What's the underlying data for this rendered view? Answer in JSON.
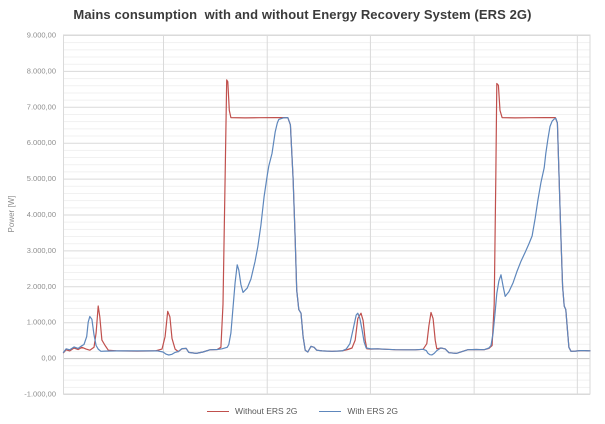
{
  "title": "Mains consumption  with and without Energy Recovery System (ERS 2G)",
  "y_axis": {
    "title": "Power [W]",
    "tick_labels": [
      "9.000,00",
      "8.000,00",
      "7.000,00",
      "6.000,00",
      "5.000,00",
      "4.000,00",
      "3.000,00",
      "2.000,00",
      "1.000,00",
      "0,00",
      "-1.000,00"
    ]
  },
  "legend": {
    "items": [
      {
        "label": "Without ERS 2G",
        "color": "#C0504D"
      },
      {
        "label": "With ERS 2G",
        "color": "#5E87BC"
      }
    ]
  },
  "chart_data": {
    "type": "line",
    "title": "Mains consumption  with and without Energy Recovery System (ERS 2G)",
    "xlabel": "",
    "ylabel": "Power [W]",
    "ylim": [
      -1000,
      9000
    ],
    "y_tick_step": 1000,
    "y_minor_step": 200,
    "y_tick_labels": [
      "9.000,00",
      "8.000,00",
      "7.000,00",
      "6.000,00",
      "5.000,00",
      "4.000,00",
      "3.000,00",
      "2.000,00",
      "1.000,00",
      "0,00",
      "-1.000,00"
    ],
    "x_axis_note": "no x tick labels shown; x expressed as percent of recorded window",
    "grid": {
      "h_major": true,
      "h_minor": true,
      "v_major": true
    },
    "x_gridlines_pct": [
      18.9,
      38.6,
      58.2,
      77.9,
      97.5
    ],
    "legend_position": "bottom",
    "series": [
      {
        "name": "Without ERS 2G",
        "color": "#C0504D",
        "points": [
          [
            0,
            150
          ],
          [
            0.5,
            230
          ],
          [
            1.2,
            200
          ],
          [
            2,
            280
          ],
          [
            2.8,
            240
          ],
          [
            3.5,
            300
          ],
          [
            4.3,
            250
          ],
          [
            5,
            220
          ],
          [
            5.8,
            300
          ],
          [
            6.2,
            700
          ],
          [
            6.6,
            1450
          ],
          [
            6.9,
            1150
          ],
          [
            7.3,
            500
          ],
          [
            7.9,
            350
          ],
          [
            8.5,
            220
          ],
          [
            10,
            200
          ],
          [
            14,
            195
          ],
          [
            17.4,
            200
          ],
          [
            18.7,
            250
          ],
          [
            19.3,
            600
          ],
          [
            19.8,
            1300
          ],
          [
            20.2,
            1150
          ],
          [
            20.6,
            550
          ],
          [
            21.2,
            250
          ],
          [
            21.8,
            180
          ],
          [
            22.5,
            260
          ],
          [
            23.3,
            270
          ],
          [
            23.8,
            160
          ],
          [
            25.2,
            130
          ],
          [
            26.5,
            170
          ],
          [
            27.8,
            230
          ],
          [
            29.2,
            240
          ],
          [
            29.9,
            300
          ],
          [
            30.3,
            1500
          ],
          [
            30.7,
            5000
          ],
          [
            31,
            7750
          ],
          [
            31.2,
            7700
          ],
          [
            31.5,
            6900
          ],
          [
            31.8,
            6700
          ],
          [
            34.5,
            6690
          ],
          [
            37.3,
            6695
          ],
          [
            40.2,
            6700
          ],
          [
            42.6,
            6700
          ],
          [
            43.1,
            6500
          ],
          [
            43.6,
            5000
          ],
          [
            44,
            3300
          ],
          [
            44.3,
            1900
          ],
          [
            44.7,
            1350
          ],
          [
            45.1,
            1250
          ],
          [
            45.5,
            600
          ],
          [
            45.9,
            220
          ],
          [
            46.4,
            170
          ],
          [
            47,
            330
          ],
          [
            47.6,
            300
          ],
          [
            48.1,
            220
          ],
          [
            49.1,
            200
          ],
          [
            51,
            190
          ],
          [
            52.9,
            200
          ],
          [
            54,
            240
          ],
          [
            54.8,
            280
          ],
          [
            55.4,
            500
          ],
          [
            55.9,
            1100
          ],
          [
            56.5,
            1250
          ],
          [
            56.9,
            1050
          ],
          [
            57.3,
            500
          ],
          [
            57.6,
            260
          ],
          [
            58.4,
            250
          ],
          [
            59.7,
            255
          ],
          [
            61.3,
            245
          ],
          [
            63,
            235
          ],
          [
            64.9,
            230
          ],
          [
            66.8,
            230
          ],
          [
            68.3,
            245
          ],
          [
            69,
            400
          ],
          [
            69.4,
            900
          ],
          [
            69.8,
            1270
          ],
          [
            70.2,
            1100
          ],
          [
            70.6,
            500
          ],
          [
            70.9,
            260
          ],
          [
            71.7,
            280
          ],
          [
            72.5,
            255
          ],
          [
            73.2,
            150
          ],
          [
            74.6,
            130
          ],
          [
            75.7,
            180
          ],
          [
            76.8,
            235
          ],
          [
            78.4,
            240
          ],
          [
            79.9,
            235
          ],
          [
            80.8,
            270
          ],
          [
            81.4,
            350
          ],
          [
            81.8,
            1500
          ],
          [
            82.1,
            5000
          ],
          [
            82.3,
            7650
          ],
          [
            82.6,
            7600
          ],
          [
            82.9,
            6900
          ],
          [
            83.3,
            6700
          ],
          [
            85.8,
            6690
          ],
          [
            88.6,
            6695
          ],
          [
            91.5,
            6700
          ],
          [
            93.4,
            6700
          ],
          [
            93.8,
            6550
          ],
          [
            94.1,
            5200
          ],
          [
            94.5,
            3300
          ],
          [
            94.8,
            2000
          ],
          [
            95.1,
            1450
          ],
          [
            95.4,
            1350
          ],
          [
            95.7,
            800
          ],
          [
            96,
            300
          ],
          [
            96.4,
            190
          ],
          [
            97.2,
            195
          ],
          [
            98.1,
            210
          ],
          [
            99,
            210
          ],
          [
            100,
            200
          ]
        ]
      },
      {
        "name": "With ERS 2G",
        "color": "#5E87BC",
        "points": [
          [
            0,
            160
          ],
          [
            0.5,
            260
          ],
          [
            1.2,
            230
          ],
          [
            2,
            310
          ],
          [
            2.8,
            270
          ],
          [
            3.3,
            330
          ],
          [
            3.9,
            380
          ],
          [
            4.4,
            600
          ],
          [
            4.7,
            1000
          ],
          [
            5,
            1160
          ],
          [
            5.4,
            1080
          ],
          [
            5.8,
            650
          ],
          [
            6.2,
            350
          ],
          [
            6.6,
            250
          ],
          [
            7.1,
            190
          ],
          [
            7.9,
            195
          ],
          [
            10,
            200
          ],
          [
            14,
            200
          ],
          [
            17.9,
            200
          ],
          [
            18.9,
            170
          ],
          [
            19.5,
            110
          ],
          [
            20,
            85
          ],
          [
            20.6,
            105
          ],
          [
            21.2,
            160
          ],
          [
            21.8,
            185
          ],
          [
            22.5,
            265
          ],
          [
            23.3,
            270
          ],
          [
            23.8,
            160
          ],
          [
            25.2,
            130
          ],
          [
            26.5,
            170
          ],
          [
            27.8,
            230
          ],
          [
            29.2,
            240
          ],
          [
            30.1,
            260
          ],
          [
            31.1,
            300
          ],
          [
            31.4,
            380
          ],
          [
            31.8,
            700
          ],
          [
            32.2,
            1400
          ],
          [
            32.6,
            2100
          ],
          [
            33,
            2600
          ],
          [
            33.3,
            2450
          ],
          [
            33.7,
            2050
          ],
          [
            34.1,
            1830
          ],
          [
            34.9,
            1950
          ],
          [
            35.6,
            2200
          ],
          [
            36.4,
            2700
          ],
          [
            36.9,
            3100
          ],
          [
            37.5,
            3700
          ],
          [
            38.1,
            4500
          ],
          [
            38.7,
            5100
          ],
          [
            39,
            5350
          ],
          [
            39.6,
            5700
          ],
          [
            40.2,
            6300
          ],
          [
            40.6,
            6550
          ],
          [
            40.9,
            6650
          ],
          [
            41.7,
            6690
          ],
          [
            42.6,
            6700
          ],
          [
            43.1,
            6500
          ],
          [
            43.6,
            5000
          ],
          [
            44,
            3300
          ],
          [
            44.3,
            1900
          ],
          [
            44.7,
            1350
          ],
          [
            45.1,
            1250
          ],
          [
            45.5,
            600
          ],
          [
            45.9,
            220
          ],
          [
            46.4,
            170
          ],
          [
            47,
            330
          ],
          [
            47.6,
            300
          ],
          [
            48.1,
            220
          ],
          [
            49.1,
            200
          ],
          [
            51,
            190
          ],
          [
            52.9,
            200
          ],
          [
            53.7,
            250
          ],
          [
            54.4,
            400
          ],
          [
            55,
            800
          ],
          [
            55.6,
            1200
          ],
          [
            55.9,
            1250
          ],
          [
            56.3,
            1100
          ],
          [
            56.7,
            800
          ],
          [
            57.1,
            450
          ],
          [
            57.5,
            280
          ],
          [
            58.4,
            255
          ],
          [
            59.7,
            260
          ],
          [
            61.3,
            245
          ],
          [
            63,
            235
          ],
          [
            64.9,
            230
          ],
          [
            66.8,
            230
          ],
          [
            68.3,
            245
          ],
          [
            68.9,
            210
          ],
          [
            69.2,
            140
          ],
          [
            69.6,
            95
          ],
          [
            70,
            90
          ],
          [
            70.4,
            130
          ],
          [
            70.9,
            210
          ],
          [
            71.7,
            285
          ],
          [
            72.5,
            255
          ],
          [
            73.2,
            150
          ],
          [
            74.6,
            130
          ],
          [
            75.7,
            180
          ],
          [
            76.8,
            235
          ],
          [
            78.4,
            240
          ],
          [
            79.9,
            235
          ],
          [
            80.8,
            280
          ],
          [
            81.2,
            350
          ],
          [
            81.6,
            700
          ],
          [
            82,
            1300
          ],
          [
            82.3,
            1800
          ],
          [
            82.7,
            2150
          ],
          [
            83.1,
            2320
          ],
          [
            83.5,
            2000
          ],
          [
            83.9,
            1720
          ],
          [
            84.6,
            1850
          ],
          [
            85.4,
            2100
          ],
          [
            86.1,
            2400
          ],
          [
            86.9,
            2700
          ],
          [
            87.7,
            2950
          ],
          [
            88.4,
            3180
          ],
          [
            89,
            3400
          ],
          [
            89.6,
            3900
          ],
          [
            90.1,
            4400
          ],
          [
            90.7,
            4900
          ],
          [
            91.3,
            5300
          ],
          [
            91.6,
            5700
          ],
          [
            92,
            6100
          ],
          [
            92.4,
            6450
          ],
          [
            92.8,
            6600
          ],
          [
            93.2,
            6660
          ],
          [
            93.5,
            6680
          ],
          [
            93.8,
            6550
          ],
          [
            94.1,
            5200
          ],
          [
            94.5,
            3300
          ],
          [
            94.8,
            2000
          ],
          [
            95.1,
            1450
          ],
          [
            95.4,
            1350
          ],
          [
            95.7,
            800
          ],
          [
            96,
            300
          ],
          [
            96.4,
            190
          ],
          [
            97.2,
            195
          ],
          [
            98.1,
            210
          ],
          [
            99,
            210
          ],
          [
            100,
            200
          ]
        ]
      }
    ]
  }
}
